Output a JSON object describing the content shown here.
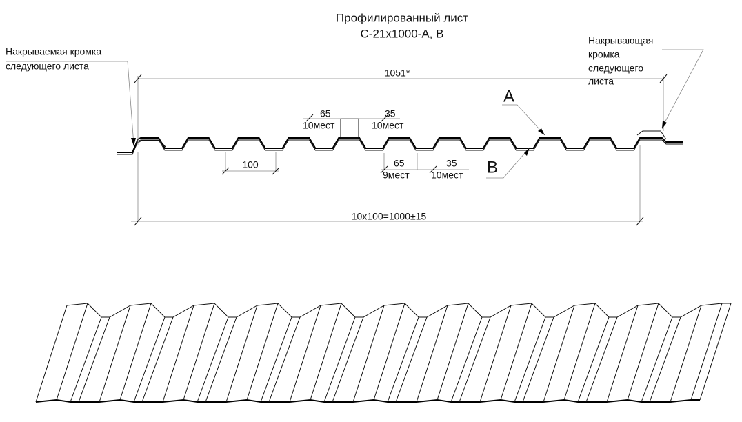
{
  "title": [
    "Профилированный лист",
    "С-21х1000-А, В"
  ],
  "left_edge_label": [
    "Накрываемая кромка",
    "следующего листа"
  ],
  "right_edge_label": [
    "Накрывающая",
    "кромка",
    "следующего",
    "листа"
  ],
  "dimensions": {
    "overall": "1051*",
    "top_left": [
      "65",
      "10мест"
    ],
    "top_right": [
      "35",
      "10мест"
    ],
    "pitch": "100",
    "bottom_left": [
      "65",
      "9мест"
    ],
    "bottom_right": [
      "35",
      "10мест"
    ],
    "total": "10х100=1000±15"
  },
  "sides": [
    "А",
    "В"
  ]
}
